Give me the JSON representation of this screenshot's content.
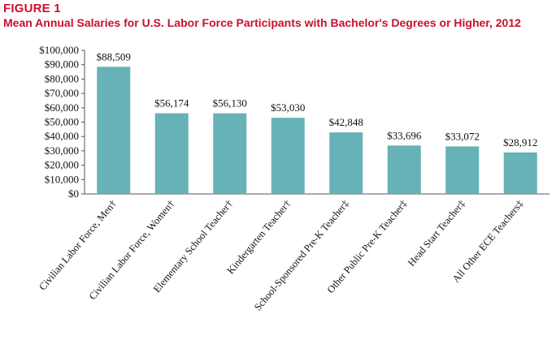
{
  "figure": {
    "label": "FIGURE 1",
    "title": "Mean Annual Salaries for U.S. Labor Force Participants with Bachelor's Degrees or Higher, 2012"
  },
  "colors": {
    "title": "#c8102e",
    "bar": "#66b2b7"
  },
  "chart_data": {
    "type": "bar",
    "title": "Mean Annual Salaries for U.S. Labor Force Participants with Bachelor's Degrees or Higher, 2012",
    "categories": [
      "Civilian Labor Force, Men†",
      "Civilian Labor Force, Women†",
      "Elementary School Teacher†",
      "Kindergarten Teacher†",
      "School-Sponsored Pre-K Teacher‡",
      "Other Public Pre-K Teacher‡",
      "Head Start Teacher‡",
      "All Other ECE Teachers‡"
    ],
    "values": [
      88509,
      56174,
      56130,
      53030,
      42848,
      33696,
      33072,
      28912
    ],
    "data_labels": [
      "$88,509",
      "$56,174",
      "$56,130",
      "$53,030",
      "$42,848",
      "$33,696",
      "$33,072",
      "$28,912"
    ],
    "ylim": [
      0,
      100000
    ],
    "y_ticks": [
      0,
      10000,
      20000,
      30000,
      40000,
      50000,
      60000,
      70000,
      80000,
      90000,
      100000
    ],
    "y_tick_labels": [
      "$0",
      "$10,000",
      "$20,000",
      "$30,000",
      "$40,000",
      "$50,000",
      "$60,000",
      "$70,000",
      "$80,000",
      "$90,000",
      "$100,000"
    ],
    "xlabel": "",
    "ylabel": "",
    "grid": false,
    "legend": "none"
  }
}
